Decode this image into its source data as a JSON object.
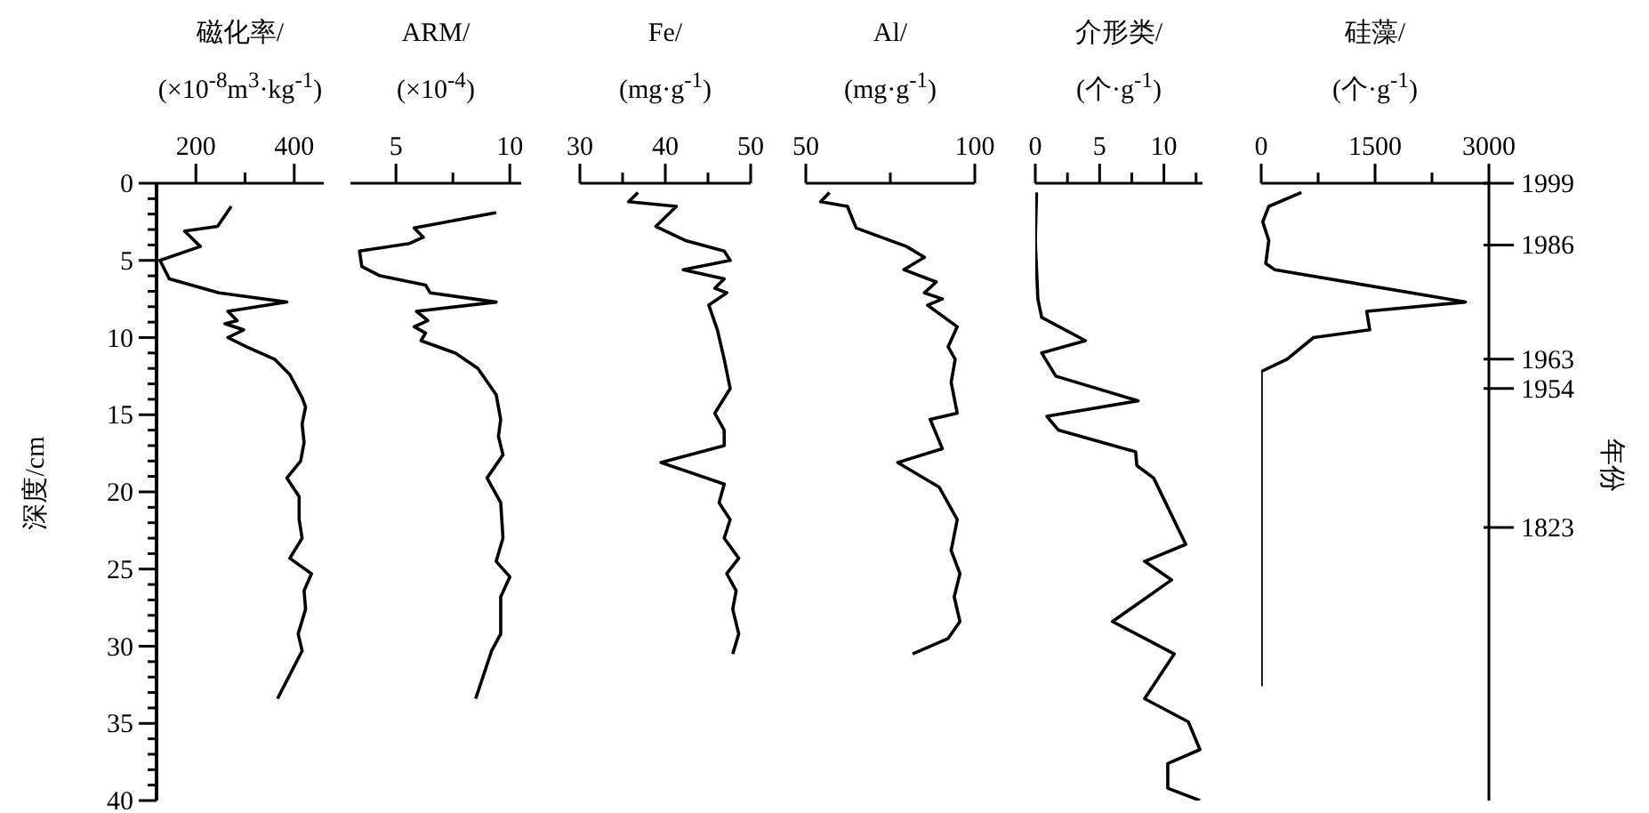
{
  "chart_data": [
    {
      "type": "line",
      "xlabel": "磁化率/\n(×10$^{-8}$m$^{3}$·kg$^{-1}$)",
      "ylabel": "深度/cm",
      "xlim": [
        120,
        460
      ],
      "xticks": [
        200,
        {
          "value": 300,
          "label": null
        },
        400
      ],
      "ylim": [
        40,
        0
      ],
      "yticks": [
        0,
        {
          "value": 1,
          "label": null
        },
        {
          "value": 2,
          "label": null
        },
        {
          "value": 3,
          "label": null
        },
        {
          "value": 4,
          "label": null
        },
        5,
        {
          "value": 6,
          "label": null
        },
        {
          "value": 7,
          "label": null
        },
        {
          "value": 8,
          "label": null
        },
        {
          "value": 9,
          "label": null
        },
        10,
        {
          "value": 11,
          "label": null
        },
        {
          "value": 12,
          "label": null
        },
        {
          "value": 13,
          "label": null
        },
        {
          "value": 14,
          "label": null
        },
        15,
        {
          "value": 16,
          "label": null
        },
        {
          "value": 17,
          "label": null
        },
        {
          "value": 18,
          "label": null
        },
        {
          "value": 19,
          "label": null
        },
        20,
        {
          "value": 21,
          "label": null
        },
        {
          "value": 22,
          "label": null
        },
        {
          "value": 23,
          "label": null
        },
        {
          "value": 24,
          "label": null
        },
        25,
        {
          "value": 26,
          "label": null
        },
        {
          "value": 27,
          "label": null
        },
        {
          "value": 28,
          "label": null
        },
        {
          "value": 29,
          "label": null
        },
        30,
        {
          "value": 31,
          "label": null
        },
        {
          "value": 32,
          "label": null
        },
        {
          "value": 33,
          "label": null
        },
        {
          "value": 34,
          "label": null
        },
        35,
        {
          "value": 36,
          "label": null
        },
        {
          "value": 37,
          "label": null
        },
        {
          "value": 38,
          "label": null
        },
        {
          "value": 39,
          "label": null
        },
        40
      ],
      "series": [
        {
          "color": "#000000",
          "x": [
            272,
            244,
            177,
            209,
            127,
            146,
            247,
            385,
            265,
            284,
            259,
            297,
            265,
            303,
            360,
            391,
            416,
            423,
            416,
            420,
            413,
            385,
            410,
            410,
            416,
            391,
            435,
            420,
            423,
            408,
            416,
            366
          ],
          "values": [
            1.5,
            2.8,
            3.1,
            4.1,
            5.0,
            6.2,
            7.1,
            7.7,
            8.3,
            8.9,
            9.1,
            9.5,
            10.0,
            10.6,
            11.4,
            12.4,
            13.9,
            14.5,
            15.6,
            16.8,
            18.0,
            19.1,
            20.3,
            21.8,
            23.0,
            24.3,
            25.3,
            26.4,
            27.6,
            29.2,
            30.3,
            33.4
          ]
        }
      ]
    },
    {
      "type": "line",
      "xlabel": "ARM/\n(×10$^{-4}$)",
      "xlim": [
        3,
        10.5
      ],
      "xticks": [
        5,
        {
          "value": 7.5,
          "label": null
        },
        10
      ],
      "ylim": [
        40,
        0
      ],
      "tick_labels": "x",
      "series": [
        {
          "color": "#000000",
          "x": [
            9.4,
            5.8,
            6.2,
            5.6,
            3.4,
            3.5,
            4.3,
            6.3,
            6.5,
            9.4,
            5.9,
            6.4,
            5.8,
            6.3,
            6.1,
            7.6,
            8.6,
            9.4,
            9.6,
            9.5,
            9.7,
            9.0,
            9.6,
            9.7,
            9.4,
            10.0,
            9.6,
            9.6,
            9.2,
            8.5
          ],
          "values": [
            1.9,
            2.9,
            3.5,
            3.9,
            4.4,
            5.4,
            6.0,
            6.6,
            7.1,
            7.7,
            8.3,
            8.9,
            9.3,
            9.7,
            10.2,
            11.0,
            12.0,
            13.7,
            15.3,
            16.4,
            17.6,
            19.1,
            20.7,
            23.0,
            24.5,
            25.5,
            26.8,
            29.2,
            30.3,
            33.4
          ]
        }
      ]
    },
    {
      "type": "line",
      "xlabel": "Fe/\n(mg·g$^{-1}$)",
      "xlim": [
        30,
        50
      ],
      "xticks": [
        30,
        {
          "value": 35,
          "label": null
        },
        40,
        {
          "value": 45,
          "label": null
        },
        50
      ],
      "ylim": [
        40,
        0
      ],
      "tick_labels": "x",
      "series": [
        {
          "color": "#000000",
          "x": [
            36.8,
            35.7,
            41.3,
            38.9,
            42.3,
            46.9,
            47.6,
            42.1,
            46.9,
            45.8,
            47.2,
            45.1,
            46.1,
            46.9,
            47.6,
            45.8,
            46.9,
            46.9,
            39.5,
            46.9,
            46.3,
            47.6,
            46.9,
            48.6,
            47.2,
            48.3,
            47.9,
            48.6,
            47.9
          ],
          "values": [
            0.6,
            1.2,
            1.5,
            2.8,
            3.7,
            4.4,
            5.0,
            5.6,
            6.2,
            6.8,
            7.1,
            7.9,
            9.5,
            11.4,
            13.3,
            14.9,
            16.0,
            17.0,
            18.1,
            19.5,
            20.7,
            21.8,
            23.0,
            24.3,
            25.3,
            26.4,
            27.6,
            29.2,
            30.5
          ]
        }
      ]
    },
    {
      "type": "line",
      "xlabel": "Al/\n(mg·g$^{-1}$)",
      "xlim": [
        50,
        100
      ],
      "xticks": [
        50,
        {
          "value": 75,
          "label": null
        },
        100
      ],
      "ylim": [
        40,
        0
      ],
      "tick_labels": "x",
      "series": [
        {
          "color": "#000000",
          "x": [
            57,
            54.4,
            62.3,
            64.9,
            79.8,
            85.1,
            79,
            88.6,
            85.1,
            90.4,
            86,
            94.8,
            92.1,
            94.2,
            93,
            94.8,
            86.8,
            90.4,
            77.2,
            89.5,
            94.8,
            93,
            95.6,
            93.9,
            95.6,
            92.1,
            81.6
          ],
          "values": [
            0.6,
            1.2,
            1.5,
            2.9,
            4.1,
            4.8,
            5.6,
            6.4,
            7.1,
            7.5,
            7.9,
            9.3,
            10.6,
            11.4,
            12.9,
            14.9,
            15.3,
            17.2,
            18.1,
            19.7,
            21.8,
            23.8,
            25.3,
            26.8,
            28.4,
            29.5,
            30.5
          ]
        }
      ]
    },
    {
      "type": "line",
      "xlabel": "介形类/\n(个·g$^{-1}$)",
      "xlim": [
        0,
        13
      ],
      "xticks": [
        0,
        {
          "value": 2.5,
          "label": null
        },
        5,
        {
          "value": 7.5,
          "label": null
        },
        10,
        {
          "value": 12.5,
          "label": null
        }
      ],
      "ylim": [
        40,
        0
      ],
      "tick_labels": "x",
      "series": [
        {
          "color": "#000000",
          "x": [
            0.1,
            0,
            0.2,
            0.5,
            3.9,
            0.5,
            1.6,
            8.0,
            0.9,
            1.8,
            7.8,
            7.9,
            9.2,
            11.7,
            8.5,
            10.6,
            6.0,
            10.8,
            8.5,
            11.9,
            12.8,
            10.3,
            10.3,
            12.8
          ],
          "values": [
            0.6,
            3.7,
            7.5,
            8.7,
            10.2,
            11.0,
            12.5,
            14.1,
            15.1,
            16.0,
            17.4,
            18.3,
            19.1,
            23.4,
            24.5,
            25.7,
            28.4,
            30.5,
            33.4,
            34.9,
            36.7,
            37.6,
            39.2,
            40
          ]
        }
      ]
    },
    {
      "type": "line",
      "xlabel": "硅藻/\n(个·g$^{-1}$)",
      "xlim": [
        0,
        3000
      ],
      "xticks": [
        0,
        {
          "value": 750,
          "label": null
        },
        1500,
        {
          "value": 2250,
          "label": null
        },
        3000
      ],
      "ylim": [
        40,
        0
      ],
      "tick_labels": "x",
      "y2label": "年份",
      "annotations": [
        "1999",
        "1986",
        "1963",
        "1954",
        "1823"
      ],
      "series": [
        {
          "color": "#000000",
          "x": [
            530,
            100,
            20,
            100,
            60,
            180,
            2690,
            1390,
            1430,
            690,
            340,
            0,
            0
          ],
          "values": [
            0.6,
            1.5,
            2.5,
            3.7,
            5.2,
            5.6,
            7.7,
            8.3,
            9.5,
            10.0,
            11.4,
            12.2,
            32.6
          ]
        }
      ]
    }
  ]
}
